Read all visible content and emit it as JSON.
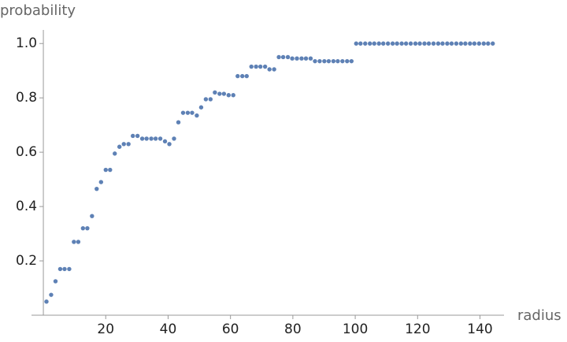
{
  "chart_data": {
    "type": "scatter",
    "x_label": "radius",
    "y_label": "probability",
    "color": "#5e81b5",
    "x": [
      1.0,
      2.5,
      3.9,
      5.4,
      6.8,
      8.3,
      9.8,
      11.2,
      12.7,
      14.1,
      15.6,
      17.1,
      18.5,
      20.0,
      21.4,
      22.9,
      24.4,
      25.8,
      27.3,
      28.7,
      30.2,
      31.7,
      33.1,
      34.6,
      36.0,
      37.5,
      39.0,
      40.4,
      41.9,
      43.3,
      44.8,
      46.3,
      47.7,
      49.2,
      50.6,
      52.1,
      53.6,
      55.0,
      56.5,
      57.9,
      59.4,
      60.9,
      62.3,
      63.8,
      65.2,
      66.7,
      68.2,
      69.6,
      71.1,
      72.5,
      74.0,
      75.5,
      76.9,
      78.4,
      79.8,
      81.3,
      82.8,
      84.2,
      85.7,
      87.1,
      88.6,
      90.1,
      91.5,
      93.0,
      94.4,
      95.9,
      97.4,
      98.8,
      100.3,
      101.7,
      103.2,
      104.7,
      106.1,
      107.6,
      109.0,
      110.5,
      112.0,
      113.4,
      114.9,
      116.3,
      117.8,
      119.3,
      120.7,
      122.2,
      123.6,
      125.1,
      126.6,
      128.0,
      129.5,
      130.9,
      132.4,
      133.9,
      135.3,
      136.8,
      138.2,
      139.7,
      141.2,
      142.6,
      144.1
    ],
    "values": [
      0.05,
      0.075,
      0.125,
      0.17,
      0.17,
      0.17,
      0.27,
      0.27,
      0.32,
      0.32,
      0.365,
      0.465,
      0.49,
      0.535,
      0.535,
      0.595,
      0.62,
      0.63,
      0.63,
      0.66,
      0.66,
      0.65,
      0.65,
      0.65,
      0.65,
      0.65,
      0.64,
      0.63,
      0.65,
      0.71,
      0.745,
      0.745,
      0.745,
      0.735,
      0.765,
      0.795,
      0.795,
      0.82,
      0.815,
      0.815,
      0.81,
      0.81,
      0.88,
      0.88,
      0.88,
      0.915,
      0.915,
      0.915,
      0.915,
      0.905,
      0.905,
      0.95,
      0.95,
      0.95,
      0.945,
      0.945,
      0.945,
      0.945,
      0.945,
      0.935,
      0.935,
      0.935,
      0.935,
      0.935,
      0.935,
      0.935,
      0.935,
      0.935,
      1,
      1,
      1,
      1,
      1,
      1,
      1,
      1,
      1,
      1,
      1,
      1,
      1,
      1,
      1,
      1,
      1,
      1,
      1,
      1,
      1,
      1,
      1,
      1,
      1,
      1,
      1,
      1,
      1,
      1,
      1
    ],
    "xlim": [
      -3.8,
      147.7
    ],
    "ylim": [
      0,
      1.05
    ],
    "xticks": [
      20,
      40,
      60,
      80,
      100,
      120,
      140
    ],
    "yticks": [
      0.2,
      0.4,
      0.6,
      0.8,
      {
        "value": 1,
        "label": "1.0"
      }
    ]
  }
}
